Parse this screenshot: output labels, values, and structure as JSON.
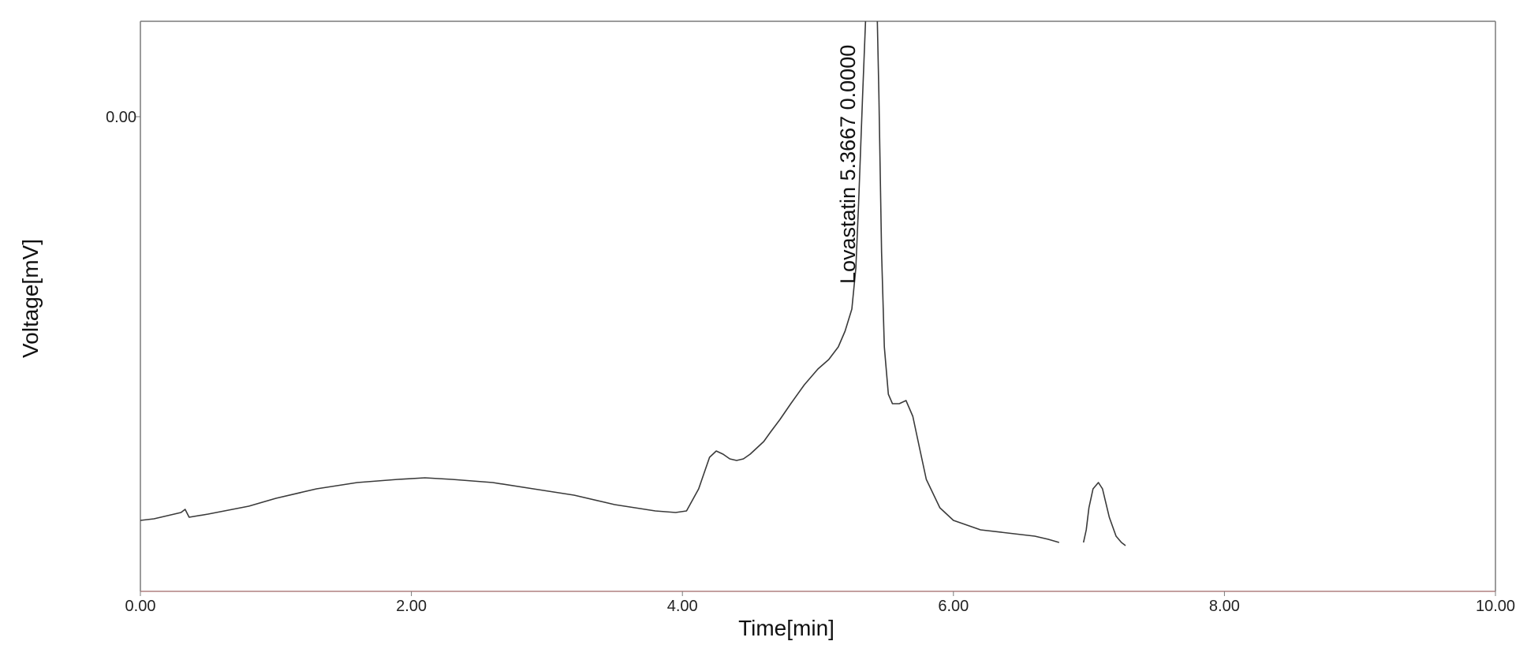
{
  "chart_data": {
    "type": "line",
    "title": "",
    "xlabel": "Time[min]",
    "ylabel": "Voltage[mV]",
    "xlim": [
      0,
      10
    ],
    "x_ticks": [
      "0.00",
      "2.00",
      "4.00",
      "6.00",
      "8.00",
      "10.00"
    ],
    "y_ticks": [
      "0.00"
    ],
    "grid": false,
    "line_color": "#3a3a3a",
    "axis_color": "#7a7a7a",
    "x_axis_color": "#b08080",
    "peak_annotation": {
      "label": "Lovastatin 5.3667 0.0000",
      "x": 5.3667
    },
    "series": [
      {
        "x": [
          0.0,
          0.1,
          0.2,
          0.3,
          0.33,
          0.36,
          0.5,
          0.8,
          1.0,
          1.3,
          1.6,
          1.9,
          2.1,
          2.3,
          2.6,
          2.9,
          3.2,
          3.5,
          3.8,
          3.95,
          4.03,
          4.12,
          4.2,
          4.25,
          4.3,
          4.35,
          4.4,
          4.45,
          4.5,
          4.6,
          4.65,
          4.72,
          4.8,
          4.9,
          5.0,
          5.08,
          5.15,
          5.2,
          5.25,
          5.28,
          5.3,
          5.33,
          5.3667,
          5.4,
          5.43,
          5.45,
          5.47,
          5.49,
          5.52,
          5.55,
          5.6,
          5.65,
          5.7,
          5.75,
          5.8,
          5.9,
          6.0,
          6.2,
          6.4,
          6.6,
          6.7,
          6.78
        ],
        "y": [
          0.05,
          0.055,
          0.065,
          0.075,
          0.085,
          0.06,
          0.07,
          0.095,
          0.12,
          0.15,
          0.17,
          0.18,
          0.185,
          0.18,
          0.17,
          0.15,
          0.13,
          0.1,
          0.08,
          0.075,
          0.08,
          0.15,
          0.25,
          0.27,
          0.26,
          0.245,
          0.24,
          0.245,
          0.26,
          0.3,
          0.33,
          0.37,
          0.42,
          0.48,
          0.53,
          0.56,
          0.6,
          0.65,
          0.72,
          0.85,
          1.05,
          1.4,
          1.8,
          2.3,
          1.8,
          1.4,
          0.9,
          0.6,
          0.45,
          0.42,
          0.42,
          0.43,
          0.38,
          0.28,
          0.18,
          0.09,
          0.05,
          0.02,
          0.01,
          0.0,
          -0.01,
          -0.02
        ]
      },
      {
        "x": [
          6.96,
          6.98,
          7.0,
          7.03,
          7.07,
          7.1,
          7.15,
          7.2,
          7.24,
          7.27
        ],
        "y": [
          -0.02,
          0.02,
          0.09,
          0.15,
          0.17,
          0.15,
          0.06,
          0.0,
          -0.02,
          -0.03
        ]
      }
    ]
  }
}
